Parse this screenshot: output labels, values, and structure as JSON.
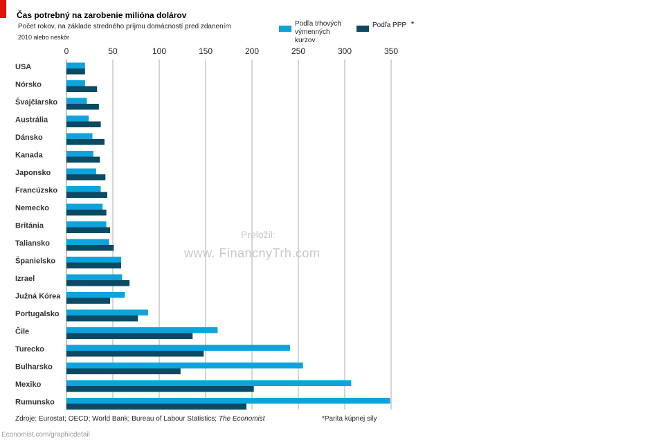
{
  "header": {
    "title": "Čas potrebný na zarobenie milióna dolárov",
    "subtitle": "Počet rokov, na základe stredného príjmu domácností pred zdanením",
    "subtitle2": "2010 alebo neskôr"
  },
  "legend": {
    "series1": "Podľa trhových výmenných kurzov",
    "series1_line1": "Podľa trhových",
    "series1_line2": "výmenných",
    "series1_line3": "kurzov",
    "series2": "Podľa PPP",
    "series2_star": "*"
  },
  "watermark": {
    "line1": "Preložil:",
    "line2": "www. FinancnyTrh.com"
  },
  "footer": {
    "sources": "Zdroje: Eurostat; OECD; World Bank; Bureau of Labour Statistics;",
    "sources_italic": "The Economist",
    "note": "*Parita kúpnej sily",
    "url": "Economist.com/graphicdetail"
  },
  "colors": {
    "market": "#0ea3dc",
    "ppp": "#0b4a62",
    "grid": "#aaaaaa",
    "accent": "#e3120b"
  },
  "chart_data": {
    "type": "bar",
    "orientation": "horizontal",
    "title": "Čas potrebný na zarobenie milióna dolárov",
    "xlim": [
      0,
      350
    ],
    "xticks": [
      0,
      50,
      100,
      150,
      200,
      250,
      300,
      350
    ],
    "grid": true,
    "legend_position": "top-right",
    "categories": [
      "USA",
      "Nórsko",
      "Švajčiarsko",
      "Austrália",
      "Dánsko",
      "Kanada",
      "Japonsko",
      "Francúzsko",
      "Nemecko",
      "Británia",
      "Taliansko",
      "Španielsko",
      "Izrael",
      "Južná Kórea",
      "Portugalsko",
      "Čile",
      "Turecko",
      "Bulharsko",
      "Mexiko",
      "Rumunsko"
    ],
    "series": [
      {
        "name": "Podľa trhových výmenných kurzov",
        "values": [
          20,
          20,
          22,
          24,
          28,
          29,
          32,
          37,
          39,
          43,
          46,
          59,
          60,
          63,
          88,
          163,
          241,
          255,
          307,
          349
        ]
      },
      {
        "name": "Podľa PPP",
        "values": [
          20,
          33,
          35,
          37,
          41,
          36,
          42,
          44,
          43,
          47,
          51,
          59,
          68,
          47,
          77,
          136,
          148,
          123,
          202,
          194
        ]
      }
    ]
  }
}
